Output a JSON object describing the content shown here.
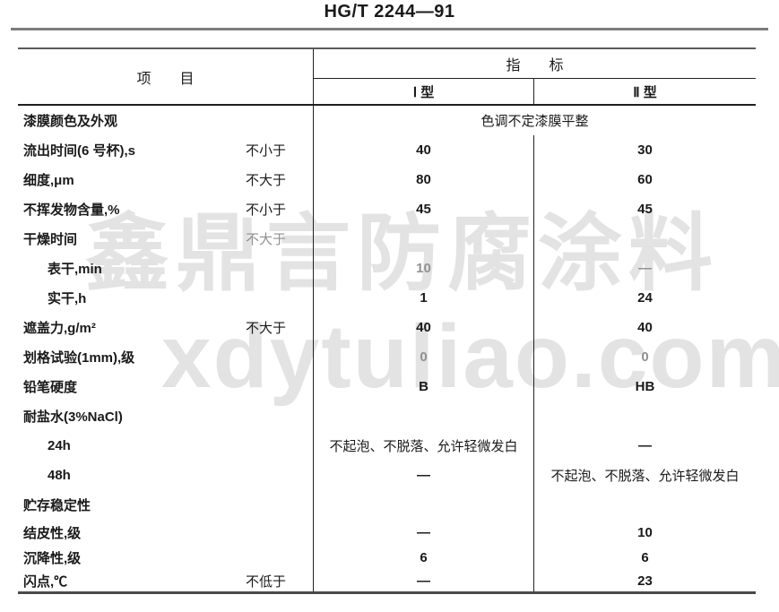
{
  "page": {
    "title": "HG/T 2244—91"
  },
  "watermark": {
    "line1": "鑫鼎言防腐涂料",
    "line2": "xdytuliao.com",
    "color": "#e3e3e3"
  },
  "colors": {
    "ink": "#1a1a1a",
    "muted": "#909090",
    "rule_gray": "#7d7d7d",
    "line_dark": "#222222"
  },
  "table": {
    "header": {
      "item": "项　　目",
      "indicator": "指　　标",
      "type1": "Ⅰ 型",
      "type2": "Ⅱ 型"
    },
    "rows": [
      {
        "item": "漆膜颜色及外观",
        "span": "色调不定漆膜平整"
      },
      {
        "item": "流出时间(6 号杯),s",
        "qualifier": "不小于",
        "v1": "40",
        "v2": "30"
      },
      {
        "item": "细度,μm",
        "qualifier": "不大于",
        "v1": "80",
        "v2": "60"
      },
      {
        "item": "不挥发物含量,%",
        "qualifier": "不小于",
        "v1": "45",
        "v2": "45"
      },
      {
        "item": "干燥时间",
        "qualifier": "不大于",
        "v1": "",
        "v2": ""
      },
      {
        "item": "表干,min",
        "v1": "10",
        "v2": "—"
      },
      {
        "item": "实干,h",
        "v1": "1",
        "v2": "24"
      },
      {
        "item": "遮盖力,g/m²",
        "qualifier": "不大于",
        "v1": "40",
        "v2": "40"
      },
      {
        "item": "划格试验(1mm),级",
        "v1": "0",
        "v2": "0"
      },
      {
        "item": "铅笔硬度",
        "v1": "B",
        "v2": "HB"
      },
      {
        "item": "耐盐水(3%NaCl)",
        "v1": "",
        "v2": ""
      },
      {
        "item": "24h",
        "v1": "不起泡、不脱落、允许轻微发白",
        "v2": "—"
      },
      {
        "item": "48h",
        "v1": "—",
        "v2": "不起泡、不脱落、允许轻微发白"
      },
      {
        "item": "贮存稳定性",
        "v1": "",
        "v2": ""
      },
      {
        "item": "结皮性,级",
        "v1": "—",
        "v2": "10"
      },
      {
        "item": "沉降性,级",
        "v1": "6",
        "v2": "6"
      },
      {
        "item": "闪点,℃",
        "qualifier": "不低于",
        "v1": "—",
        "v2": "23"
      }
    ]
  }
}
